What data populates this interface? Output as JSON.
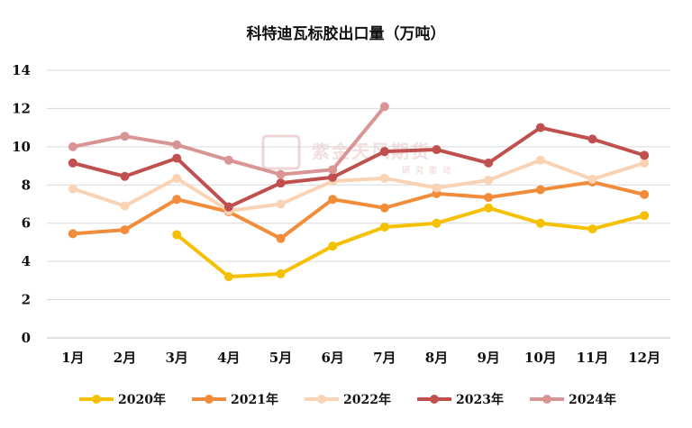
{
  "chart_data": {
    "type": "line",
    "title": "科特迪瓦标胶出口量（万吨）",
    "xlabel": "",
    "ylabel": "",
    "categories": [
      "1月",
      "2月",
      "3月",
      "4月",
      "5月",
      "6月",
      "7月",
      "8月",
      "9月",
      "10月",
      "11月",
      "12月"
    ],
    "ylim": [
      0,
      14
    ],
    "yticks": [
      0,
      2,
      4,
      6,
      8,
      10,
      12,
      14
    ],
    "grid": true,
    "legend": "bottom",
    "series": [
      {
        "name": "2020年",
        "color": "#f5c000",
        "values": [
          null,
          null,
          5.4,
          3.2,
          3.35,
          4.8,
          5.8,
          6.0,
          6.8,
          6.0,
          5.7,
          6.4
        ]
      },
      {
        "name": "2021年",
        "color": "#f08c3a",
        "values": [
          5.45,
          5.65,
          7.25,
          6.6,
          5.2,
          7.25,
          6.8,
          7.55,
          7.35,
          7.75,
          8.15,
          7.5
        ]
      },
      {
        "name": "2022年",
        "color": "#fad3b5",
        "values": [
          7.8,
          6.9,
          8.35,
          6.65,
          7.0,
          8.2,
          8.35,
          7.85,
          8.25,
          9.3,
          8.3,
          9.15
        ]
      },
      {
        "name": "2023年",
        "color": "#c0504d",
        "values": [
          9.15,
          8.45,
          9.4,
          6.85,
          8.1,
          8.4,
          9.75,
          9.85,
          9.15,
          11.0,
          10.4,
          9.55
        ]
      },
      {
        "name": "2024年",
        "color": "#d99594",
        "values": [
          10.0,
          10.55,
          10.1,
          9.3,
          8.55,
          8.8,
          12.1,
          null,
          null,
          null,
          null,
          null
        ]
      }
    ]
  },
  "watermark": {
    "logo_text": "紫金天风期货",
    "sub_text": "研究驱动"
  }
}
